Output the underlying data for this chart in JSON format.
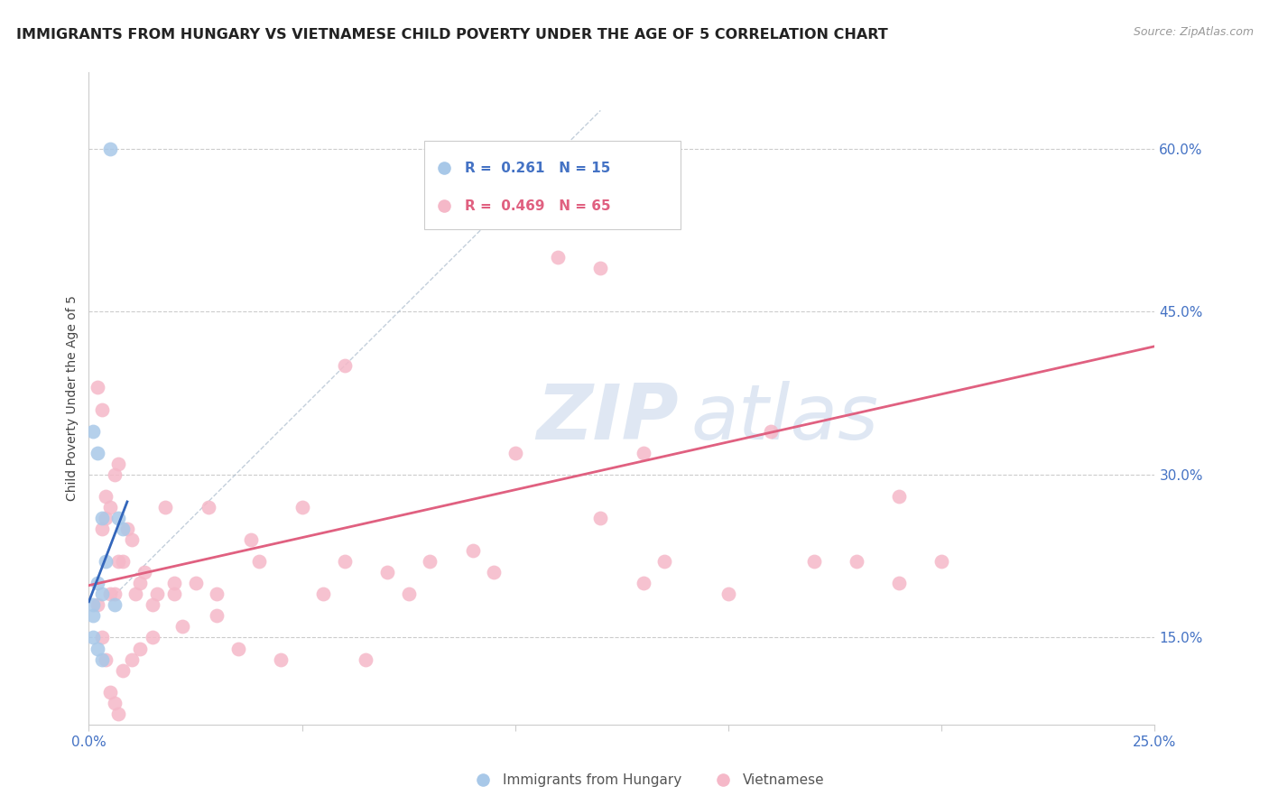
{
  "title": "IMMIGRANTS FROM HUNGARY VS VIETNAMESE CHILD POVERTY UNDER THE AGE OF 5 CORRELATION CHART",
  "source": "Source: ZipAtlas.com",
  "ylabel": "Child Poverty Under the Age of 5",
  "xlim": [
    0.0,
    0.25
  ],
  "ylim": [
    0.07,
    0.67
  ],
  "yticks": [
    0.15,
    0.3,
    0.45,
    0.6
  ],
  "ytick_labels": [
    "15.0%",
    "30.0%",
    "45.0%",
    "60.0%"
  ],
  "xticks": [
    0.0,
    0.05,
    0.1,
    0.15,
    0.2,
    0.25
  ],
  "xtick_labels": [
    "0.0%",
    "",
    "",
    "",
    "",
    "25.0%"
  ],
  "hungary_color": "#a8c8e8",
  "vietnamese_color": "#f5b8c8",
  "hungary_line_color": "#3366bb",
  "vietnamese_line_color": "#e06080",
  "diag_color": "#aabbcc",
  "watermark": "ZIPatlas",
  "watermark_color": "#c5d5ea",
  "background_color": "#ffffff",
  "grid_color": "#cccccc",
  "tick_color": "#4472c4",
  "title_color": "#222222",
  "source_color": "#999999",
  "legend_text_color_1": "#4472c4",
  "legend_text_color_2": "#e06080",
  "hungary_x": [
    0.005,
    0.001,
    0.002,
    0.003,
    0.004,
    0.002,
    0.003,
    0.006,
    0.007,
    0.008,
    0.001,
    0.001,
    0.001,
    0.002,
    0.003
  ],
  "hungary_y": [
    0.6,
    0.34,
    0.32,
    0.26,
    0.22,
    0.2,
    0.19,
    0.18,
    0.26,
    0.25,
    0.18,
    0.15,
    0.17,
    0.14,
    0.13
  ],
  "viet_x": [
    0.002,
    0.003,
    0.004,
    0.005,
    0.006,
    0.007,
    0.003,
    0.004,
    0.005,
    0.006,
    0.007,
    0.008,
    0.009,
    0.01,
    0.011,
    0.012,
    0.013,
    0.015,
    0.016,
    0.018,
    0.02,
    0.022,
    0.025,
    0.028,
    0.03,
    0.035,
    0.038,
    0.04,
    0.045,
    0.05,
    0.055,
    0.06,
    0.065,
    0.07,
    0.075,
    0.08,
    0.09,
    0.095,
    0.1,
    0.11,
    0.12,
    0.13,
    0.135,
    0.15,
    0.16,
    0.17,
    0.18,
    0.19,
    0.2,
    0.12,
    0.13,
    0.002,
    0.003,
    0.004,
    0.005,
    0.006,
    0.007,
    0.008,
    0.01,
    0.012,
    0.015,
    0.02,
    0.03,
    0.06,
    0.19
  ],
  "viet_y": [
    0.38,
    0.36,
    0.28,
    0.19,
    0.19,
    0.22,
    0.25,
    0.26,
    0.27,
    0.3,
    0.31,
    0.22,
    0.25,
    0.24,
    0.19,
    0.2,
    0.21,
    0.18,
    0.19,
    0.27,
    0.19,
    0.16,
    0.2,
    0.27,
    0.17,
    0.14,
    0.24,
    0.22,
    0.13,
    0.27,
    0.19,
    0.4,
    0.13,
    0.21,
    0.19,
    0.22,
    0.23,
    0.21,
    0.32,
    0.5,
    0.49,
    0.32,
    0.22,
    0.19,
    0.34,
    0.22,
    0.22,
    0.28,
    0.22,
    0.26,
    0.2,
    0.18,
    0.15,
    0.13,
    0.1,
    0.09,
    0.08,
    0.12,
    0.13,
    0.14,
    0.15,
    0.2,
    0.19,
    0.22,
    0.2
  ],
  "viet_line_x0": 0.0,
  "viet_line_y0": 0.198,
  "viet_line_x1": 0.25,
  "viet_line_y1": 0.418,
  "hung_line_x0": 0.0,
  "hung_line_y0": 0.183,
  "hung_line_x1": 0.009,
  "hung_line_y1": 0.275,
  "diag_line_x0": 0.005,
  "diag_line_y0": 0.185,
  "diag_line_x1": 0.12,
  "diag_line_y1": 0.635
}
